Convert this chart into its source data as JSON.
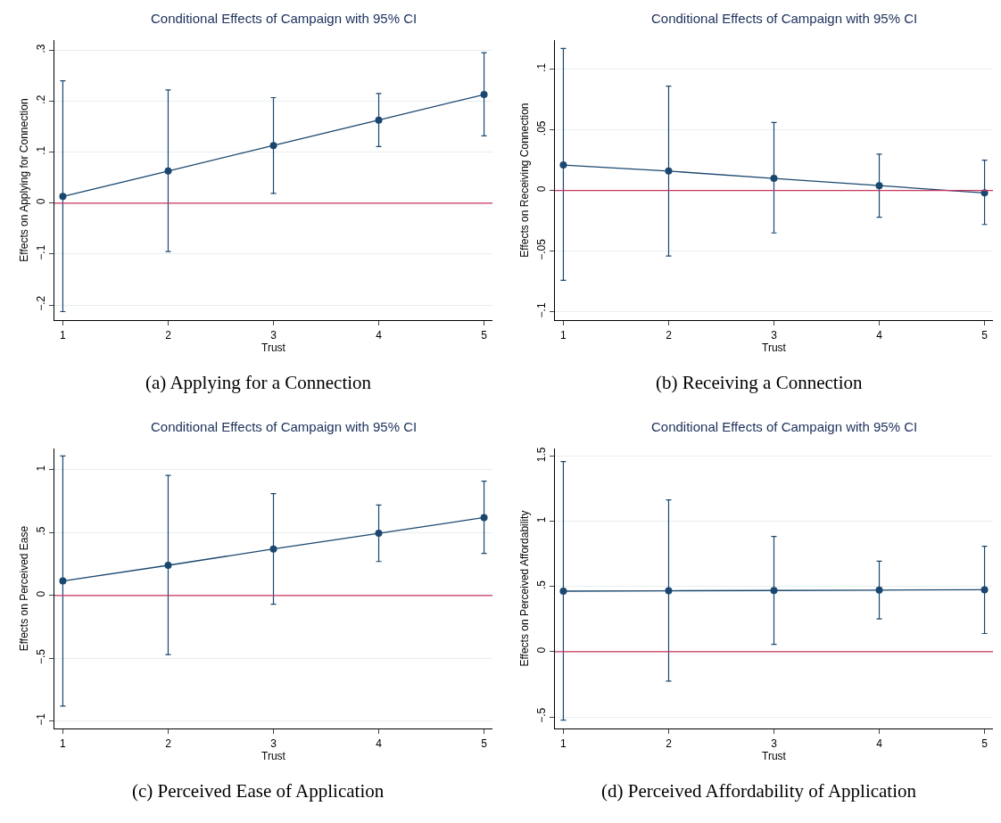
{
  "chart_data": [
    {
      "type": "line",
      "title": "Conditional Effects of Campaign with 95% CI",
      "xlabel": "Trust",
      "ylabel": "Effects on Applying for Connection",
      "annotations": [
        "(a) Applying for a Connection"
      ],
      "x": [
        1,
        2,
        3,
        4,
        5
      ],
      "series": [
        {
          "color": "#1a476f",
          "values": [
            0.013,
            0.063,
            0.113,
            0.163,
            0.213
          ],
          "errors": [
            [
              -0.213,
              0.24
            ],
            [
              -0.095,
              0.222
            ],
            [
              0.019,
              0.207
            ],
            [
              0.111,
              0.215
            ],
            [
              0.132,
              0.295
            ]
          ]
        }
      ],
      "xlim": [
        0.92,
        5.08
      ],
      "xticks": [
        1,
        2,
        3,
        4,
        5
      ],
      "ylim": [
        -0.23,
        0.32
      ],
      "yticks": [
        {
          "value": -0.2,
          "label": "−.2"
        },
        {
          "value": -0.1,
          "label": "−.1"
        },
        0,
        {
          "value": 0.1,
          "label": ".1"
        },
        {
          "value": 0.2,
          "label": ".2"
        },
        {
          "value": 0.3,
          "label": ".3"
        }
      ],
      "ref_lines": [
        {
          "axis": "y",
          "value": 0,
          "color": "#c8365e"
        }
      ],
      "grid": "y",
      "marker": "circle",
      "line_style": "solid"
    },
    {
      "type": "line",
      "title": "Conditional Effects of Campaign with 95% CI",
      "xlabel": "Trust",
      "ylabel": "Effects on Receiving Connection",
      "annotations": [
        "(b) Receiving a Connection"
      ],
      "x": [
        1,
        2,
        3,
        4,
        5
      ],
      "series": [
        {
          "color": "#1a476f",
          "values": [
            0.021,
            0.016,
            0.01,
            0.004,
            -0.002
          ],
          "errors": [
            [
              -0.074,
              0.117
            ],
            [
              -0.054,
              0.086
            ],
            [
              -0.035,
              0.056
            ],
            [
              -0.022,
              0.03
            ],
            [
              -0.028,
              0.025
            ]
          ]
        }
      ],
      "xlim": [
        0.92,
        5.08
      ],
      "xticks": [
        1,
        2,
        3,
        4,
        5
      ],
      "ylim": [
        -0.107,
        0.124
      ],
      "yticks": [
        {
          "value": -0.1,
          "label": "−.1"
        },
        {
          "value": -0.05,
          "label": "−.05"
        },
        0,
        {
          "value": 0.05,
          "label": ".05"
        },
        {
          "value": 0.1,
          "label": ".1"
        }
      ],
      "ref_lines": [
        {
          "axis": "y",
          "value": 0,
          "color": "#c8365e"
        }
      ],
      "grid": "y",
      "marker": "circle",
      "line_style": "solid"
    },
    {
      "type": "line",
      "title": "Conditional Effects of Campaign with 95% CI",
      "xlabel": "Trust",
      "ylabel": "Effects on Perceived Ease",
      "annotations": [
        "(c) Perceived Ease of Application"
      ],
      "x": [
        1,
        2,
        3,
        4,
        5
      ],
      "series": [
        {
          "color": "#1a476f",
          "values": [
            0.115,
            0.24,
            0.37,
            0.495,
            0.62
          ],
          "errors": [
            [
              -0.88,
              1.11
            ],
            [
              -0.47,
              0.955
            ],
            [
              -0.07,
              0.81
            ],
            [
              0.27,
              0.72
            ],
            [
              0.335,
              0.91
            ]
          ]
        }
      ],
      "xlim": [
        0.92,
        5.08
      ],
      "xticks": [
        1,
        2,
        3,
        4,
        5
      ],
      "ylim": [
        -1.06,
        1.17
      ],
      "yticks": [
        {
          "value": -1,
          "label": "−1"
        },
        {
          "value": -0.5,
          "label": "−.5"
        },
        0,
        {
          "value": 0.5,
          "label": ".5"
        },
        1
      ],
      "ref_lines": [
        {
          "axis": "y",
          "value": 0,
          "color": "#c8365e"
        }
      ],
      "grid": "y",
      "marker": "circle",
      "line_style": "solid"
    },
    {
      "type": "line",
      "title": "Conditional Effects of Campaign with 95% CI",
      "xlabel": "Trust",
      "ylabel": "Effects on Perceived Affordability",
      "annotations": [
        "(d) Perceived Affordability of Application"
      ],
      "x": [
        1,
        2,
        3,
        4,
        5
      ],
      "series": [
        {
          "color": "#1a476f",
          "values": [
            0.465,
            0.468,
            0.47,
            0.473,
            0.476
          ],
          "errors": [
            [
              -0.525,
              1.46
            ],
            [
              -0.225,
              1.165
            ],
            [
              0.057,
              0.885
            ],
            [
              0.252,
              0.695
            ],
            [
              0.14,
              0.81
            ]
          ]
        }
      ],
      "xlim": [
        0.92,
        5.08
      ],
      "xticks": [
        1,
        2,
        3,
        4,
        5
      ],
      "ylim": [
        -0.59,
        1.56
      ],
      "yticks": [
        {
          "value": -0.5,
          "label": "−.5"
        },
        0,
        {
          "value": 0.5,
          "label": ".5"
        },
        1,
        1.5
      ],
      "ref_lines": [
        {
          "axis": "y",
          "value": 0,
          "color": "#c8365e"
        }
      ],
      "grid": "y",
      "marker": "circle",
      "line_style": "solid"
    }
  ]
}
